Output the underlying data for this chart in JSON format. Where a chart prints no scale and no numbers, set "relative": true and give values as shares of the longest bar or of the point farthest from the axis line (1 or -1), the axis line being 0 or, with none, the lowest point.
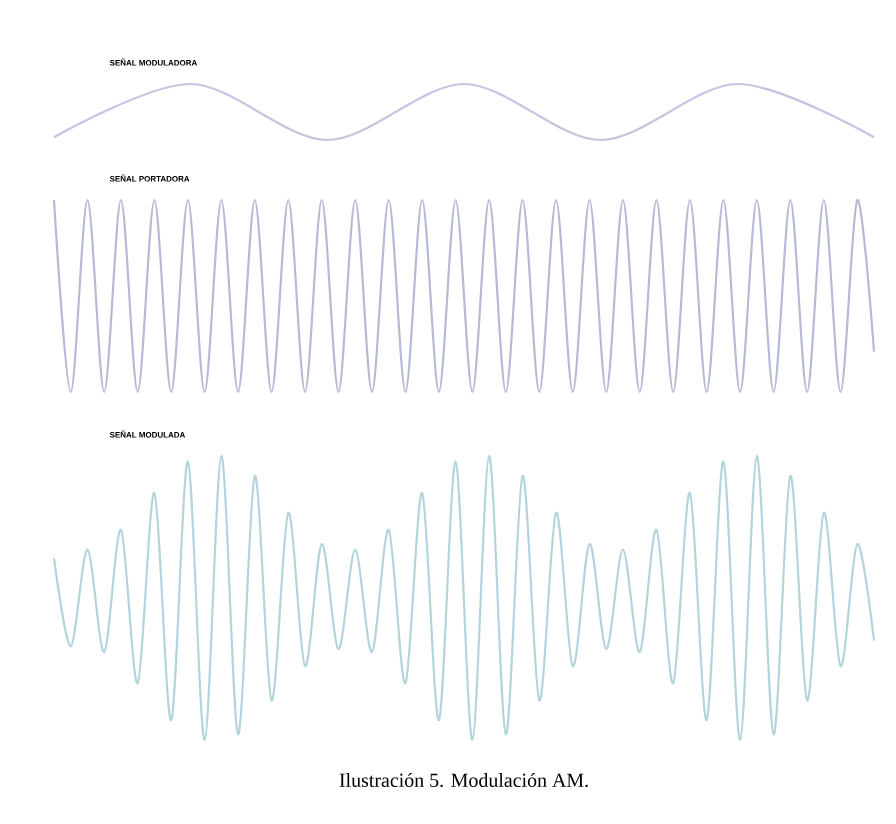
{
  "chart_data": [
    {
      "type": "line",
      "title": "SEÑAL MODULADORA",
      "relative": true,
      "color": "#c3c6de",
      "categories": [
        null,
        null,
        null,
        null,
        null,
        null,
        null
      ],
      "values": [
        0.05,
        1,
        0,
        1,
        0,
        1,
        0.05
      ]
    },
    {
      "type": "line",
      "title": "SEÑAL PORTADORA",
      "relative": true,
      "color": "#b7bad6",
      "categories": [
        null,
        null,
        null,
        null,
        null,
        null,
        null,
        null,
        null,
        null,
        null,
        null,
        null,
        null,
        null,
        null,
        null,
        null,
        null,
        null,
        null,
        null,
        null,
        null,
        null,
        null,
        null,
        null,
        null,
        null,
        null,
        null,
        null,
        null,
        null,
        null,
        null,
        null,
        null,
        null,
        null,
        null,
        null,
        null,
        null,
        null,
        null,
        null,
        null,
        null
      ],
      "values": [
        1,
        0,
        1,
        0,
        1,
        0,
        1,
        0,
        1,
        0,
        1,
        0,
        1,
        0,
        1,
        0,
        1,
        0,
        1,
        0,
        1,
        0,
        1,
        0,
        1,
        0,
        1,
        0,
        1,
        0,
        1,
        0,
        1,
        0,
        1,
        0,
        1,
        0,
        1,
        0,
        1,
        0,
        1,
        0,
        1,
        0,
        1,
        0,
        1,
        0.21
      ]
    },
    {
      "type": "line",
      "title": "SEÑAL MODULADA",
      "relative": true,
      "color": "#b3d4dc",
      "categories": [
        null,
        null,
        null,
        null,
        null,
        null,
        null,
        null,
        null,
        null,
        null,
        null,
        null,
        null,
        null,
        null,
        null,
        null,
        null,
        null,
        null,
        null,
        null,
        null,
        null,
        null,
        null,
        null,
        null,
        null,
        null,
        null,
        null,
        null,
        null,
        null,
        null,
        null,
        null,
        null,
        null,
        null,
        null,
        null,
        null,
        null,
        null,
        null,
        null,
        null
      ],
      "values": [
        0.64,
        0.33,
        0.67,
        0.31,
        0.74,
        0.2,
        0.87,
        0.07,
        0.98,
        0,
        1,
        0.02,
        0.93,
        0.14,
        0.8,
        0.26,
        0.69,
        0.32,
        0.67,
        0.31,
        0.74,
        0.2,
        0.87,
        0.07,
        0.98,
        0,
        1,
        0.02,
        0.93,
        0.14,
        0.8,
        0.26,
        0.69,
        0.32,
        0.67,
        0.31,
        0.74,
        0.2,
        0.87,
        0.07,
        0.98,
        0,
        1,
        0.02,
        0.93,
        0.14,
        0.8,
        0.26,
        0.69,
        0.35
      ],
      "annotations": [
        "Ilustración 5. Modulación AM."
      ]
    }
  ]
}
